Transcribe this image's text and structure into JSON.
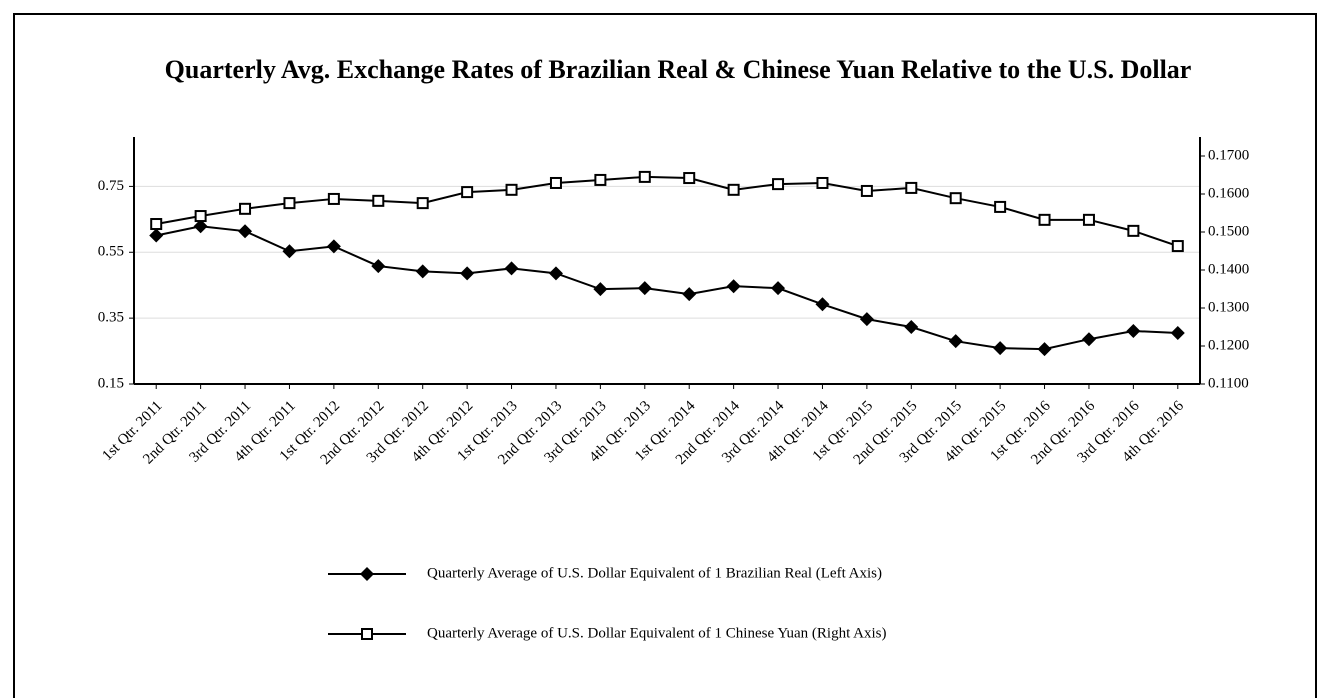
{
  "chart_data": {
    "type": "line",
    "title": "Quarterly Avg. Exchange Rates of Brazilian Real & Chinese Yuan Relative to the U.S. Dollar",
    "categories": [
      "1st Qtr. 2011",
      "2nd Qtr. 2011",
      "3rd Qtr. 2011",
      "4th Qtr. 2011",
      "1st Qtr. 2012",
      "2nd Qtr. 2012",
      "3rd Qtr. 2012",
      "4th Qtr. 2012",
      "1st Qtr. 2013",
      "2nd Qtr. 2013",
      "3rd Qtr. 2013",
      "4th Qtr. 2013",
      "1st Qtr. 2014",
      "2nd Qtr. 2014",
      "3rd Qtr. 2014",
      "4th Qtr. 2014",
      "1st Qtr. 2015",
      "2nd Qtr. 2015",
      "3rd Qtr. 2015",
      "4th Qtr. 2015",
      "1st Qtr. 2016",
      "2nd Qtr. 2016",
      "3rd Qtr. 2016",
      "4th Qtr. 2016"
    ],
    "series": [
      {
        "name": "Quarterly Average of U.S. Dollar Equivalent of 1 Brazilian Real (Left Axis)",
        "color": "#000000",
        "marker": "diamond",
        "axis": "y",
        "values": [
          0.601,
          0.629,
          0.614,
          0.553,
          0.568,
          0.508,
          0.492,
          0.486,
          0.501,
          0.486,
          0.438,
          0.441,
          0.423,
          0.447,
          0.441,
          0.392,
          0.347,
          0.323,
          0.28,
          0.259,
          0.256,
          0.286,
          0.311,
          0.305
        ]
      },
      {
        "name": "Quarterly Average of U.S. Dollar Equivalent of 1 Chinese Yuan (Right Axis)",
        "color": "#000000",
        "marker": "square",
        "axis": "y2",
        "values": [
          0.1521,
          0.1542,
          0.1561,
          0.1576,
          0.1587,
          0.1582,
          0.1576,
          0.1605,
          0.1611,
          0.1629,
          0.1637,
          0.1645,
          0.1642,
          0.1611,
          0.1626,
          0.1629,
          0.1608,
          0.1616,
          0.1589,
          0.1566,
          0.1532,
          0.1532,
          0.1503,
          0.1463
        ]
      }
    ],
    "ylim": [
      0.15,
      0.9
    ],
    "yticks": [
      0.15,
      0.35,
      0.55,
      0.75
    ],
    "y2lim": [
      0.11,
      0.175
    ],
    "y2ticks": [
      {
        "value": 0.11,
        "label": "0.1100"
      },
      {
        "value": 0.12,
        "label": "0.1200"
      },
      {
        "value": 0.13,
        "label": "0.1300"
      },
      {
        "value": 0.14,
        "label": "0.1400"
      },
      {
        "value": 0.15,
        "label": "0.1500"
      },
      {
        "value": 0.16,
        "label": "0.1600"
      },
      {
        "value": 0.17,
        "label": "0.1700"
      }
    ],
    "grid": true,
    "legend": "bottom"
  }
}
